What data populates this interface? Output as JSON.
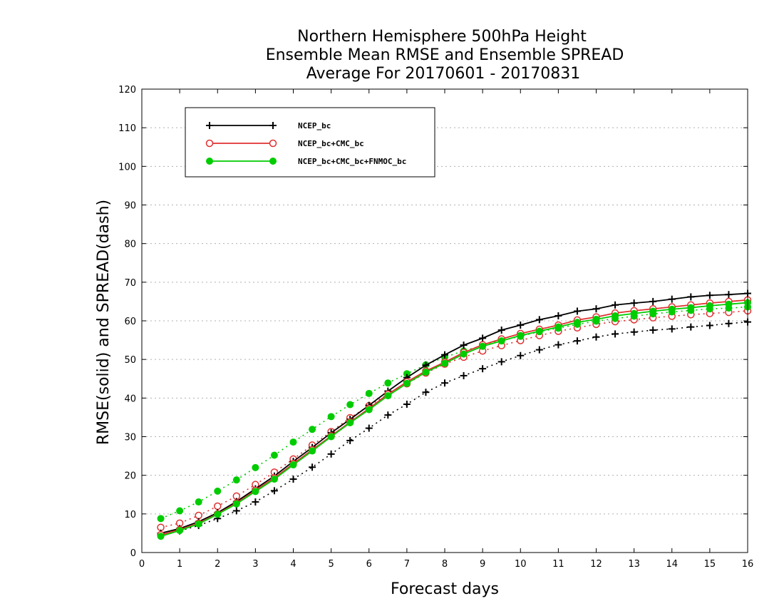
{
  "chart_data": {
    "type": "line",
    "title": [
      "Northern Hemisphere 500hPa Height",
      "Ensemble Mean RMSE and Ensemble SPREAD",
      "Average For 20170601 - 20170831"
    ],
    "xlabel": "Forecast days",
    "ylabel": "RMSE(solid) and SPREAD(dash)",
    "xlim": [
      0,
      16
    ],
    "ylim": [
      0,
      120
    ],
    "xticks": [
      0,
      1,
      2,
      3,
      4,
      5,
      6,
      7,
      8,
      9,
      10,
      11,
      12,
      13,
      14,
      15,
      16
    ],
    "yticks": [
      0,
      10,
      20,
      30,
      40,
      50,
      60,
      70,
      80,
      90,
      100,
      110,
      120
    ],
    "grid": true,
    "legend_position": "top-left",
    "x": [
      0.5,
      1,
      1.5,
      2,
      2.5,
      3,
      3.5,
      4,
      4.5,
      5,
      5.5,
      6,
      6.5,
      7,
      7.5,
      8,
      8.5,
      9,
      9.5,
      10,
      10.5,
      11,
      11.5,
      12,
      12.5,
      13,
      13.5,
      14,
      14.5,
      15,
      15.5,
      16
    ],
    "series": [
      {
        "name": "NCEP_bc",
        "kind": "rmse",
        "color": "#000000",
        "marker": "plus",
        "values": [
          5.0,
          6.2,
          8.0,
          10.3,
          13.2,
          16.5,
          19.8,
          23.6,
          27.2,
          31.0,
          34.5,
          38.1,
          41.8,
          45.3,
          48.5,
          51.2,
          53.7,
          55.5,
          57.6,
          58.9,
          60.3,
          61.3,
          62.5,
          63.1,
          64.1,
          64.6,
          65.0,
          65.6,
          66.2,
          66.6,
          66.8,
          67.1
        ]
      },
      {
        "name": "NCEP_bc+CMC_bc",
        "kind": "rmse",
        "color": "#e03030",
        "marker": "open-circle",
        "values": [
          4.6,
          5.9,
          7.6,
          10.0,
          12.8,
          16.1,
          19.3,
          23.0,
          26.6,
          30.2,
          33.8,
          37.3,
          41.0,
          44.2,
          47.0,
          49.3,
          51.8,
          53.8,
          55.3,
          56.7,
          57.8,
          58.9,
          60.2,
          61.0,
          62.0,
          62.6,
          63.1,
          63.6,
          64.1,
          64.6,
          65.0,
          65.4
        ]
      },
      {
        "name": "NCEP_bc+CMC_bc+FNMOC_bc",
        "kind": "rmse",
        "color": "#00cc00",
        "marker": "filled-circle",
        "values": [
          4.2,
          5.7,
          7.4,
          9.9,
          12.6,
          15.8,
          19.0,
          22.7,
          26.3,
          30.0,
          33.6,
          37.0,
          40.6,
          43.8,
          46.7,
          49.0,
          51.4,
          53.4,
          54.8,
          56.2,
          57.3,
          58.4,
          59.6,
          60.4,
          61.3,
          61.9,
          62.5,
          63.0,
          63.4,
          63.9,
          64.3,
          64.7
        ]
      },
      {
        "name": "",
        "kind": "spread",
        "color": "#000000",
        "marker": "plus",
        "values": [
          4.5,
          5.6,
          7.0,
          8.8,
          10.8,
          13.1,
          16.0,
          19.0,
          22.1,
          25.5,
          29.0,
          32.2,
          35.6,
          38.4,
          41.5,
          43.9,
          45.8,
          47.6,
          49.4,
          51.0,
          52.5,
          53.8,
          54.8,
          55.8,
          56.6,
          57.1,
          57.6,
          57.9,
          58.4,
          58.8,
          59.3,
          59.7
        ]
      },
      {
        "name": "",
        "kind": "spread",
        "color": "#e03030",
        "marker": "open-circle",
        "values": [
          6.5,
          7.6,
          9.6,
          12.0,
          14.6,
          17.6,
          20.8,
          24.2,
          27.8,
          31.3,
          34.9,
          38.0,
          41.0,
          43.7,
          46.5,
          48.8,
          50.6,
          52.2,
          53.6,
          54.9,
          56.2,
          57.3,
          58.2,
          59.1,
          59.8,
          60.3,
          60.8,
          61.2,
          61.6,
          61.9,
          62.2,
          62.6
        ]
      },
      {
        "name": "",
        "kind": "spread",
        "color": "#00cc00",
        "marker": "filled-circle",
        "values": [
          8.8,
          10.8,
          13.1,
          15.9,
          18.8,
          22.0,
          25.2,
          28.6,
          31.9,
          35.2,
          38.3,
          41.2,
          43.9,
          46.3,
          48.6,
          50.6,
          52.2,
          53.6,
          54.9,
          56.0,
          57.2,
          58.1,
          59.1,
          59.9,
          60.6,
          61.2,
          61.8,
          62.3,
          62.7,
          63.1,
          63.3,
          63.6
        ]
      }
    ]
  }
}
